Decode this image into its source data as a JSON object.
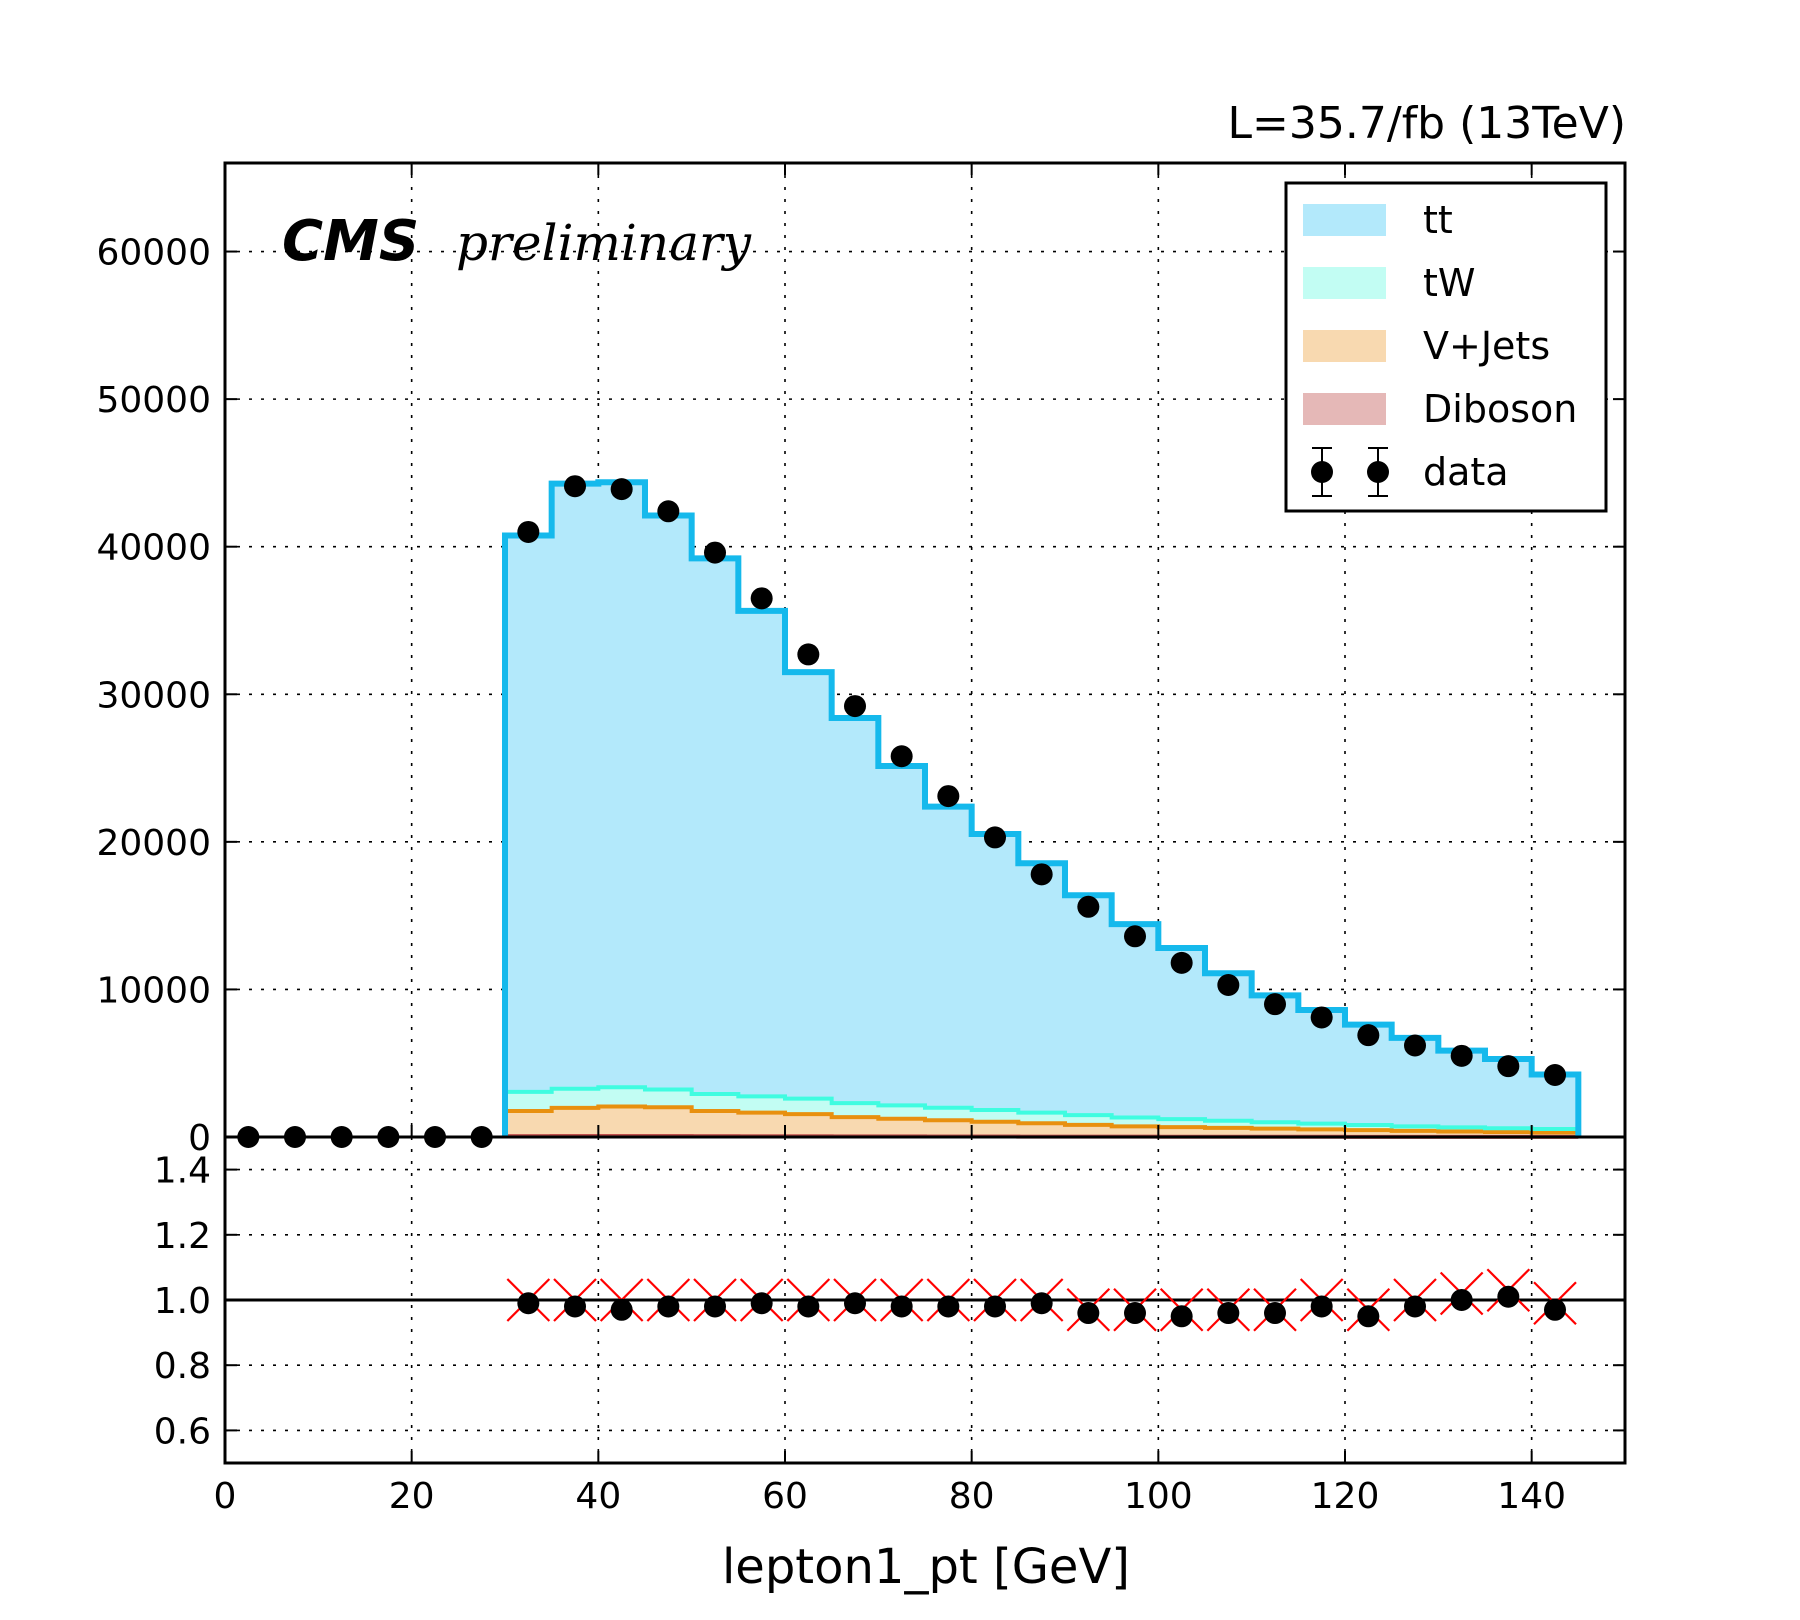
{
  "chart_data": [
    {
      "type": "stacked-step-histogram",
      "annotations": {
        "lumi": "L=35.7/fb (13TeV)",
        "cms": "CMS",
        "preliminary": "preliminary"
      },
      "xlabel": "lepton1_pt [GeV]",
      "xlim": [
        0,
        150
      ],
      "ylim": [
        0,
        66000
      ],
      "x_ticks": [
        "0",
        "20",
        "40",
        "60",
        "80",
        "100",
        "120",
        "140"
      ],
      "y_ticks": [
        "0",
        "10000",
        "20000",
        "30000",
        "40000",
        "50000",
        "60000"
      ],
      "grid": true,
      "legend_position": "top-right",
      "bin_edges": [
        0,
        5,
        10,
        15,
        20,
        25,
        30,
        35,
        40,
        45,
        50,
        55,
        60,
        65,
        70,
        75,
        80,
        85,
        90,
        95,
        100,
        105,
        110,
        115,
        120,
        125,
        130,
        135,
        140,
        145
      ],
      "series": [
        {
          "name": "Diboson",
          "color": "#e5b8b7",
          "line": "#c0504d",
          "values": [
            0,
            0,
            0,
            0,
            0,
            0,
            60,
            70,
            70,
            65,
            60,
            55,
            50,
            45,
            40,
            36,
            32,
            28,
            25,
            22,
            20,
            18,
            16,
            14,
            12,
            11,
            10,
            9,
            8
          ]
        },
        {
          "name": "V+Jets",
          "color": "#f8d9b0",
          "line": "#e8900f",
          "values": [
            0,
            0,
            0,
            0,
            0,
            0,
            1700,
            1900,
            2000,
            1950,
            1700,
            1600,
            1500,
            1300,
            1200,
            1100,
            1000,
            900,
            800,
            700,
            650,
            600,
            550,
            500,
            450,
            400,
            360,
            330,
            300
          ]
        },
        {
          "name": "tW",
          "color": "#c2fdf3",
          "line": "#3ffce0",
          "values": [
            0,
            0,
            0,
            0,
            0,
            0,
            1300,
            1300,
            1300,
            1200,
            1150,
            1100,
            1050,
            950,
            900,
            850,
            800,
            720,
            660,
            600,
            540,
            480,
            430,
            390,
            350,
            310,
            280,
            250,
            230
          ]
        },
        {
          "name": "tt",
          "color": "#b3e9fb",
          "line": "#15b9ec",
          "values": [
            0,
            0,
            0,
            0,
            0,
            0,
            37700,
            41000,
            41000,
            38900,
            36300,
            32900,
            28900,
            26100,
            23000,
            20400,
            18700,
            16900,
            14900,
            13100,
            11600,
            10000,
            8600,
            7700,
            6800,
            6000,
            5200,
            4700,
            3700
          ]
        }
      ],
      "data": {
        "name": "data",
        "x": [
          2.5,
          7.5,
          12.5,
          17.5,
          22.5,
          27.5,
          32.5,
          37.5,
          42.5,
          47.5,
          52.5,
          57.5,
          62.5,
          67.5,
          72.5,
          77.5,
          82.5,
          87.5,
          92.5,
          97.5,
          102.5,
          107.5,
          112.5,
          117.5,
          122.5,
          127.5,
          132.5,
          137.5,
          142.5
        ],
        "values": [
          0,
          0,
          0,
          0,
          0,
          0,
          41000,
          44100,
          43900,
          42400,
          39600,
          36500,
          32700,
          29200,
          25800,
          23100,
          20300,
          17800,
          15600,
          13600,
          11800,
          10300,
          9000,
          8100,
          6900,
          6200,
          5500,
          4800,
          4200
        ]
      }
    },
    {
      "type": "scatter",
      "role": "ratio panel",
      "xlim": [
        0,
        150
      ],
      "ylim": [
        0.5,
        1.5
      ],
      "y_ticks": [
        "0.6",
        "0.8",
        "1.0",
        "1.2",
        "1.4"
      ],
      "reference_line": 1.0,
      "grid": true,
      "x": [
        32.5,
        37.5,
        42.5,
        47.5,
        52.5,
        57.5,
        62.5,
        67.5,
        72.5,
        77.5,
        82.5,
        87.5,
        92.5,
        97.5,
        102.5,
        107.5,
        112.5,
        117.5,
        122.5,
        127.5,
        132.5,
        137.5,
        142.5
      ],
      "ratio_points": [
        0.99,
        0.98,
        0.97,
        0.98,
        0.98,
        0.99,
        0.98,
        0.99,
        0.98,
        0.98,
        0.98,
        0.99,
        0.96,
        0.96,
        0.95,
        0.96,
        0.96,
        0.98,
        0.95,
        0.98,
        1.0,
        1.01,
        0.97
      ],
      "cross_points": [
        1.0,
        1.0,
        1.0,
        1.0,
        1.0,
        1.0,
        1.0,
        1.0,
        1.0,
        1.0,
        1.0,
        1.0,
        0.97,
        0.97,
        0.97,
        0.97,
        0.97,
        1.0,
        0.97,
        1.0,
        1.02,
        1.03,
        0.99
      ],
      "point_color": "#000000",
      "cross_color": "#ff0000"
    }
  ]
}
